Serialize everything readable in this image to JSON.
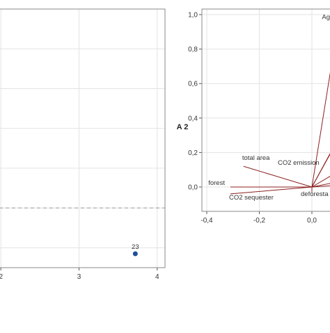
{
  "chart_data": [
    {
      "type": "scatter",
      "title": "",
      "xlabel": "",
      "ylabel": "",
      "xlim": [
        1.9,
        4.1
      ],
      "ylim": [
        -0.3,
        1.0
      ],
      "x_ticks": [
        "2",
        "3",
        "4"
      ],
      "x_tick_values": [
        2,
        3,
        4
      ],
      "grid": true,
      "reference_line": {
        "y": 0,
        "style": "dashed"
      },
      "points": [
        {
          "label": "23",
          "x": 3.72,
          "y": -0.23
        }
      ],
      "point_color": "#1f4e9c"
    },
    {
      "type": "line",
      "subtype": "loading-vectors",
      "title": "",
      "xlabel": "",
      "ylabel": "A 2",
      "xlim": [
        -0.45,
        0.1
      ],
      "ylim": [
        -0.05,
        1.0
      ],
      "x_ticks": [
        "-0,4",
        "-0,2",
        "0,0"
      ],
      "x_tick_values": [
        -0.4,
        -0.2,
        0.0
      ],
      "y_ticks": [
        "0,0",
        "0,2",
        "0,4",
        "0,6",
        "0,8",
        "1,0"
      ],
      "y_tick_values": [
        0.0,
        0.2,
        0.4,
        0.6,
        0.8,
        1.0
      ],
      "grid": true,
      "vector_color": "#8b1e1e",
      "vectors": [
        {
          "label": "forest",
          "x": -0.31,
          "y": 0.0
        },
        {
          "label": "CO2 sequester",
          "x": -0.31,
          "y": -0.04
        },
        {
          "label": "total area",
          "x": -0.26,
          "y": 0.12
        },
        {
          "label": "deforesta",
          "x": 0.0,
          "y": -0.03
        },
        {
          "label": "CO2 emission",
          "x": 0.08,
          "y": 0.22
        },
        {
          "label": "Ag",
          "x": 0.1,
          "y": 0.95
        },
        {
          "label": "",
          "x": 0.1,
          "y": 0.28
        },
        {
          "label": "",
          "x": 0.1,
          "y": 0.01
        },
        {
          "label": "",
          "x": 0.1,
          "y": 0.09
        },
        {
          "label": "",
          "x": 0.1,
          "y": 0.03
        }
      ]
    }
  ]
}
